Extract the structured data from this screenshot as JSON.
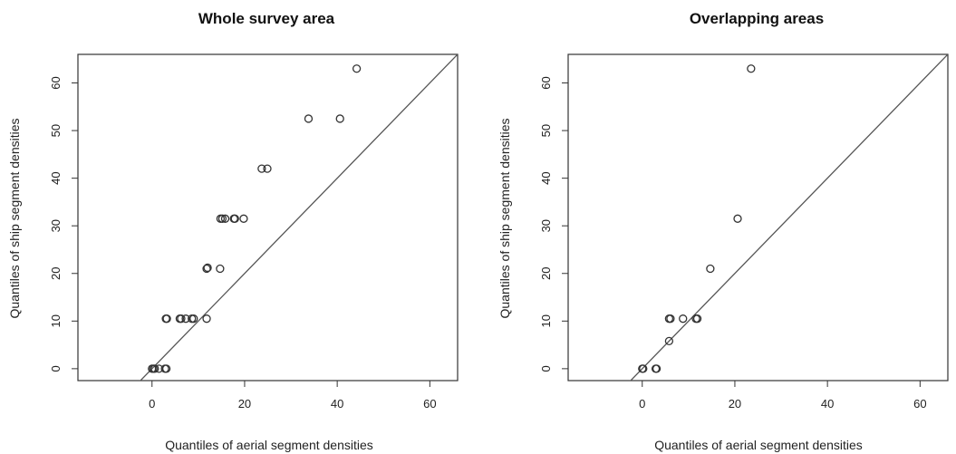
{
  "chart_data": [
    {
      "type": "scatter",
      "title": "Whole survey area",
      "xlabel": "Quantiles of aerial segment densities",
      "ylabel": "Quantiles of ship segment densities",
      "xlim": [
        -16,
        66
      ],
      "ylim": [
        -2.5,
        66
      ],
      "xticks": [
        0,
        20,
        40,
        60
      ],
      "yticks": [
        0,
        10,
        20,
        30,
        40,
        50,
        60
      ],
      "reference_line": {
        "slope": 1,
        "intercept": 0
      },
      "grid": false,
      "points": [
        {
          "x": 0,
          "y": 0
        },
        {
          "x": 0.3,
          "y": 0
        },
        {
          "x": 0.6,
          "y": 0
        },
        {
          "x": 1.5,
          "y": 0
        },
        {
          "x": 2.8,
          "y": 0
        },
        {
          "x": 3.1,
          "y": 0
        },
        {
          "x": 3,
          "y": 10.5
        },
        {
          "x": 3.2,
          "y": 10.5
        },
        {
          "x": 6,
          "y": 10.5
        },
        {
          "x": 6.3,
          "y": 10.5
        },
        {
          "x": 7.3,
          "y": 10.5
        },
        {
          "x": 8.6,
          "y": 10.5
        },
        {
          "x": 9,
          "y": 10.5
        },
        {
          "x": 11.8,
          "y": 10.5
        },
        {
          "x": 11.8,
          "y": 21
        },
        {
          "x": 12,
          "y": 21.2
        },
        {
          "x": 14.7,
          "y": 21
        },
        {
          "x": 14.8,
          "y": 31.5
        },
        {
          "x": 15.2,
          "y": 31.5
        },
        {
          "x": 15.8,
          "y": 31.5
        },
        {
          "x": 17.7,
          "y": 31.5
        },
        {
          "x": 17.9,
          "y": 31.5
        },
        {
          "x": 19.8,
          "y": 31.5
        },
        {
          "x": 23.7,
          "y": 42
        },
        {
          "x": 24.9,
          "y": 42
        },
        {
          "x": 33.8,
          "y": 52.5
        },
        {
          "x": 40.6,
          "y": 52.5
        },
        {
          "x": 44.2,
          "y": 63
        }
      ]
    },
    {
      "type": "scatter",
      "title": "Overlapping areas",
      "xlabel": "Quantiles of aerial segment densities",
      "ylabel": "Quantiles of ship segment densities",
      "xlim": [
        -16,
        66
      ],
      "ylim": [
        -2.5,
        66
      ],
      "xticks": [
        0,
        20,
        40,
        60
      ],
      "yticks": [
        0,
        10,
        20,
        30,
        40,
        50,
        60
      ],
      "reference_line": {
        "slope": 1,
        "intercept": 0
      },
      "grid": false,
      "points": [
        {
          "x": 0,
          "y": 0
        },
        {
          "x": 0.2,
          "y": 0
        },
        {
          "x": 2.9,
          "y": 0
        },
        {
          "x": 3.1,
          "y": 0
        },
        {
          "x": 5.8,
          "y": 5.8
        },
        {
          "x": 5.8,
          "y": 10.5
        },
        {
          "x": 6.1,
          "y": 10.5
        },
        {
          "x": 8.8,
          "y": 10.5
        },
        {
          "x": 11.6,
          "y": 10.5
        },
        {
          "x": 11.9,
          "y": 10.5
        },
        {
          "x": 14.7,
          "y": 21
        },
        {
          "x": 20.6,
          "y": 31.5
        },
        {
          "x": 23.5,
          "y": 63
        }
      ]
    }
  ]
}
